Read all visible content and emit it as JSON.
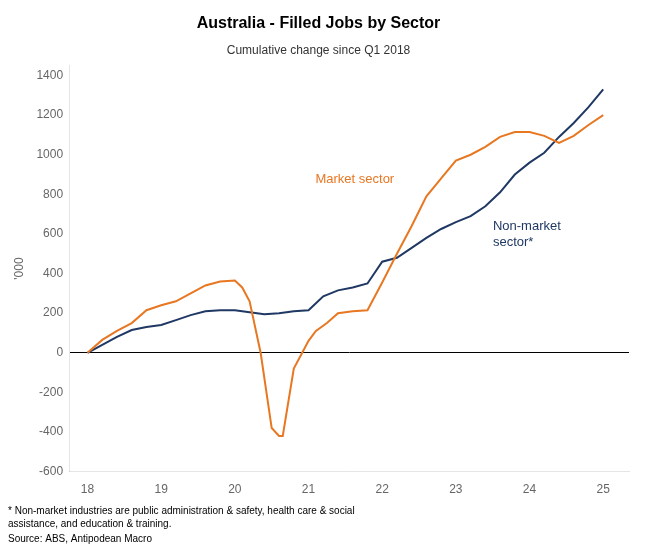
{
  "chart_data": {
    "type": "line",
    "title": "Australia - Filled Jobs by Sector",
    "subtitle": "Cumulative change since Q1 2018",
    "ylabel": "'000",
    "annotations": [
      "* Non-market industries are public administration & safety, health care & social\nassistance, and education & training.",
      "Source: ABS, Antipodean Macro"
    ],
    "series": [
      {
        "name": "Market sector",
        "color": "#E87722",
        "x": [
          18.0,
          18.2,
          18.4,
          18.6,
          18.8,
          19.0,
          19.2,
          19.4,
          19.6,
          19.8,
          20.0,
          20.1,
          20.2,
          20.35,
          20.5,
          20.6,
          20.65,
          20.8,
          21.0,
          21.1,
          21.25,
          21.4,
          21.6,
          21.8,
          22.0,
          22.2,
          22.4,
          22.6,
          22.8,
          23.0,
          23.2,
          23.4,
          23.6,
          23.8,
          24.0,
          24.2,
          24.4,
          24.6,
          24.8,
          25.0
        ],
        "values": [
          0,
          65,
          110,
          150,
          215,
          240,
          260,
          300,
          340,
          360,
          365,
          330,
          260,
          0,
          -380,
          -420,
          -420,
          -80,
          60,
          110,
          150,
          200,
          210,
          215,
          355,
          500,
          640,
          790,
          880,
          970,
          1000,
          1040,
          1090,
          1115,
          1115,
          1095,
          1060,
          1095,
          1150,
          1200
        ]
      },
      {
        "name": "Non-market\nsector*",
        "color": "#1F3864",
        "x": [
          18.0,
          18.2,
          18.4,
          18.6,
          18.8,
          19.0,
          19.2,
          19.4,
          19.6,
          19.8,
          20.0,
          20.2,
          20.4,
          20.6,
          20.8,
          21.0,
          21.2,
          21.4,
          21.6,
          21.8,
          22.0,
          22.2,
          22.4,
          22.6,
          22.8,
          23.0,
          23.2,
          23.4,
          23.6,
          23.8,
          24.0,
          24.2,
          24.4,
          24.6,
          24.8,
          25.0
        ],
        "values": [
          0,
          40,
          80,
          115,
          130,
          140,
          165,
          190,
          210,
          215,
          215,
          205,
          195,
          200,
          210,
          215,
          285,
          315,
          330,
          350,
          460,
          480,
          530,
          580,
          625,
          660,
          690,
          740,
          810,
          900,
          960,
          1010,
          1090,
          1160,
          1240,
          1330
        ]
      }
    ],
    "xlim": [
      17.75,
      25.35
    ],
    "ylim": [
      -600,
      1450
    ],
    "xticks": [
      18,
      19,
      20,
      21,
      22,
      23,
      24,
      25
    ],
    "yticks": [
      -600,
      -400,
      -200,
      0,
      200,
      400,
      600,
      800,
      1000,
      1200,
      1400
    ],
    "grid": false
  }
}
